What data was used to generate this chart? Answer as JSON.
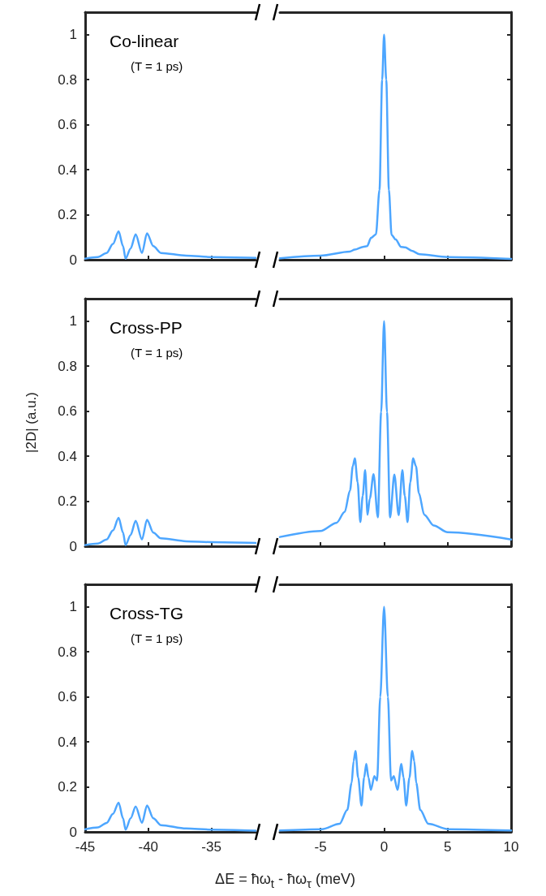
{
  "chart_data": [
    {
      "type": "line",
      "title": "Co-linear",
      "annotations": [
        "(T = 1 ps)"
      ],
      "xlim": [
        -45,
        -31.5
      ],
      "xticks": [
        -45,
        -40,
        -35
      ],
      "ylim": [
        0,
        1.1
      ],
      "yticks": [
        0,
        0.2,
        0.4,
        0.6,
        0.8,
        1
      ],
      "tick_labels": "y",
      "series": [
        {
          "color": "#4da6ff",
          "x": [
            -45,
            -44,
            -43.3,
            -42.8,
            -42.35,
            -42.0,
            -41.8,
            -41.4,
            -41.0,
            -40.5,
            -40.1,
            -39.6,
            -39,
            -37,
            -35,
            -31.5
          ],
          "values": [
            0.005,
            0.012,
            0.03,
            0.07,
            0.126,
            0.06,
            0.005,
            0.05,
            0.113,
            0.03,
            0.117,
            0.06,
            0.03,
            0.018,
            0.012,
            0.008
          ]
        }
      ]
    },
    {
      "type": "line",
      "xlim": [
        -8.2,
        10
      ],
      "xticks": [
        -5,
        0,
        5,
        10
      ],
      "ylim": [
        0,
        1.1
      ],
      "yticks": [
        0,
        0.2,
        0.4,
        0.6,
        0.8,
        1
      ],
      "tick_labels": false,
      "series": [
        {
          "color": "#4da6ff",
          "x": [
            -8.2,
            -5,
            -2.7,
            -2.3,
            -1.66,
            -1.34,
            -1.02,
            -0.64,
            -0.36,
            -0.15,
            0,
            0.17,
            0.38,
            0.59,
            0.91,
            1.34,
            1.66,
            2.17,
            2.8,
            5,
            10
          ],
          "values": [
            0.006,
            0.018,
            0.036,
            0.045,
            0.057,
            0.06,
            0.097,
            0.113,
            0.31,
            0.8,
            1.0,
            0.8,
            0.31,
            0.11,
            0.09,
            0.057,
            0.055,
            0.04,
            0.024,
            0.012,
            0.004
          ]
        }
      ]
    },
    {
      "type": "line",
      "title": "Cross-PP",
      "annotations": [
        "(T = 1 ps)"
      ],
      "ylabel": "|2D| (a.u.)",
      "xlim": [
        -45,
        -31.5
      ],
      "xticks": [
        -45,
        -40,
        -35
      ],
      "ylim": [
        0,
        1.1
      ],
      "yticks": [
        0,
        0.2,
        0.4,
        0.6,
        0.8,
        1
      ],
      "tick_labels": "y",
      "series": [
        {
          "color": "#4da6ff",
          "x": [
            -45,
            -44,
            -43.3,
            -42.8,
            -42.35,
            -42.0,
            -41.8,
            -41.4,
            -41.0,
            -40.5,
            -40.1,
            -39.6,
            -39,
            -37,
            -35,
            -31.5
          ],
          "values": [
            0.005,
            0.012,
            0.03,
            0.07,
            0.126,
            0.06,
            0.005,
            0.05,
            0.113,
            0.03,
            0.117,
            0.06,
            0.035,
            0.022,
            0.018,
            0.014
          ]
        }
      ]
    },
    {
      "type": "line",
      "xlim": [
        -8.2,
        10
      ],
      "xticks": [
        -5,
        0,
        5,
        10
      ],
      "ylim": [
        0,
        1.1
      ],
      "yticks": [
        0,
        0.2,
        0.4,
        0.6,
        0.8,
        1
      ],
      "tick_labels": false,
      "series": [
        {
          "color": "#4da6ff",
          "x": [
            -8.2,
            -5,
            -3.74,
            -3.1,
            -2.68,
            -2.46,
            -2.3,
            -2.08,
            -1.87,
            -1.68,
            -1.49,
            -1.3,
            -1.12,
            -0.83,
            -0.49,
            -0.23,
            0,
            0.23,
            0.47,
            0.81,
            1.15,
            1.44,
            1.63,
            1.85,
            2.06,
            2.29,
            2.51,
            2.74,
            3.16,
            3.91,
            5,
            10
          ],
          "values": [
            0.041,
            0.068,
            0.104,
            0.152,
            0.248,
            0.356,
            0.39,
            0.284,
            0.107,
            0.224,
            0.338,
            0.14,
            0.212,
            0.32,
            0.128,
            0.596,
            1.0,
            0.596,
            0.128,
            0.318,
            0.138,
            0.338,
            0.224,
            0.107,
            0.284,
            0.39,
            0.356,
            0.236,
            0.14,
            0.092,
            0.062,
            0.03
          ]
        }
      ]
    },
    {
      "type": "line",
      "title": "Cross-TG",
      "annotations": [
        "(T = 1 ps)"
      ],
      "xlabel": "ΔE = ħω$_{t}$ - ħω$_{τ}$ (meV)",
      "xlim": [
        -45,
        -31.5
      ],
      "xticks": [
        -45,
        -40,
        -35
      ],
      "ylim": [
        0,
        1.1
      ],
      "yticks": [
        0,
        0.2,
        0.4,
        0.6,
        0.8,
        1
      ],
      "series": [
        {
          "color": "#4da6ff",
          "x": [
            -45,
            -44,
            -43.3,
            -42.8,
            -42.35,
            -42.0,
            -41.8,
            -41.4,
            -41.0,
            -40.5,
            -40.1,
            -39.6,
            -39,
            -37,
            -35,
            -31.5
          ],
          "values": [
            0.012,
            0.02,
            0.04,
            0.08,
            0.13,
            0.06,
            0.01,
            0.06,
            0.113,
            0.04,
            0.117,
            0.06,
            0.03,
            0.015,
            0.01,
            0.005
          ]
        }
      ]
    },
    {
      "type": "line",
      "xlim": [
        -8.2,
        10
      ],
      "xticks": [
        -5,
        0,
        5,
        10
      ],
      "ylim": [
        0,
        1.1
      ],
      "yticks": [
        0,
        0.2,
        0.4,
        0.6,
        0.8,
        1
      ],
      "tick_labels": "x",
      "series": [
        {
          "color": "#4da6ff",
          "x": [
            -8.2,
            -4.9,
            -3.5,
            -2.9,
            -2.55,
            -2.4,
            -2.25,
            -2.04,
            -1.78,
            -1.57,
            -1.4,
            -1.23,
            -1.04,
            -0.76,
            -0.55,
            -0.3,
            0,
            0.3,
            0.55,
            0.76,
            1.06,
            1.36,
            1.53,
            1.74,
            2.0,
            2.21,
            2.38,
            2.53,
            2.85,
            3.48,
            5.07,
            10
          ],
          "values": [
            0.006,
            0.012,
            0.036,
            0.097,
            0.218,
            0.314,
            0.36,
            0.242,
            0.117,
            0.242,
            0.302,
            0.242,
            0.187,
            0.248,
            0.228,
            0.6,
            1.0,
            0.6,
            0.228,
            0.248,
            0.187,
            0.302,
            0.242,
            0.117,
            0.242,
            0.36,
            0.314,
            0.218,
            0.097,
            0.036,
            0.012,
            0.006
          ]
        }
      ]
    }
  ]
}
